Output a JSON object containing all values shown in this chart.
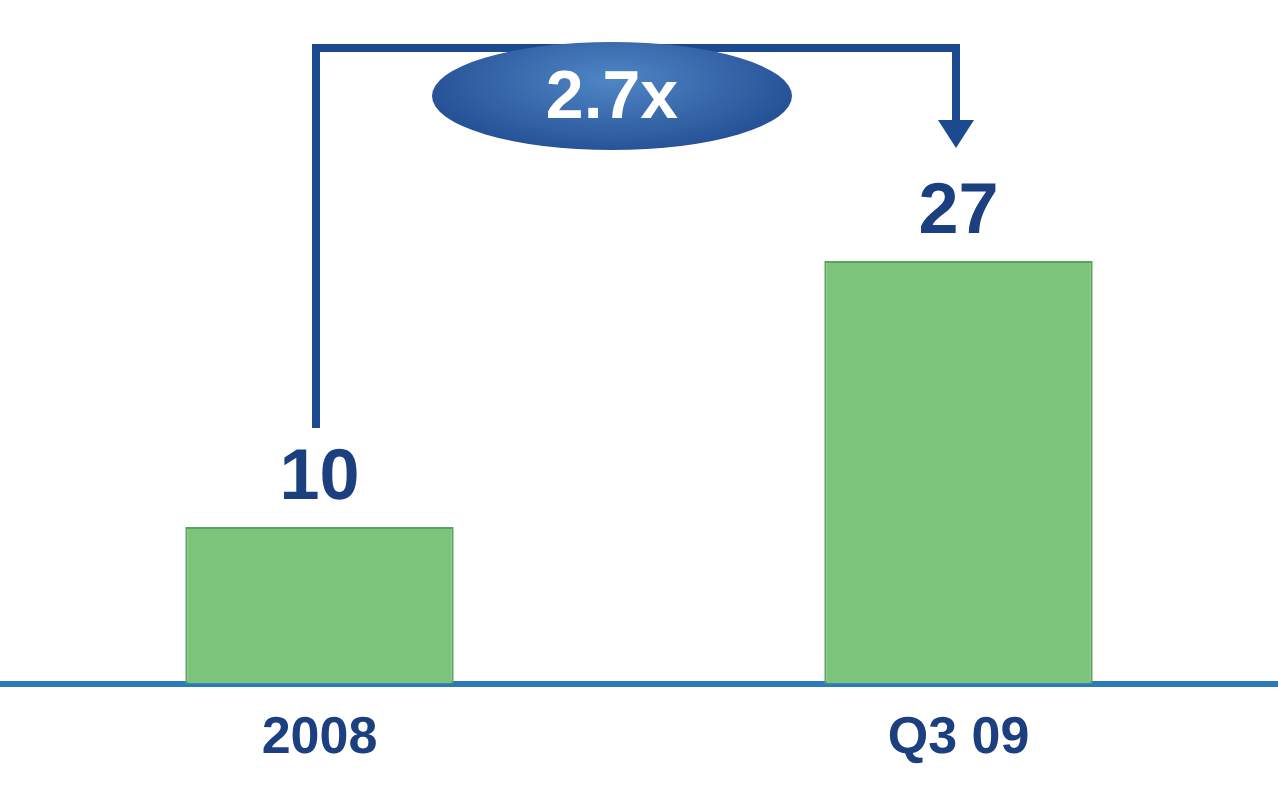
{
  "chart_data": {
    "type": "bar",
    "categories": [
      "2008",
      "Q3 09"
    ],
    "values": [
      10,
      27
    ],
    "color": "#7cc47c",
    "data_labels": true,
    "tick_labels": "x",
    "annotations": [
      "2.7x"
    ],
    "grid": false,
    "legend": false
  }
}
